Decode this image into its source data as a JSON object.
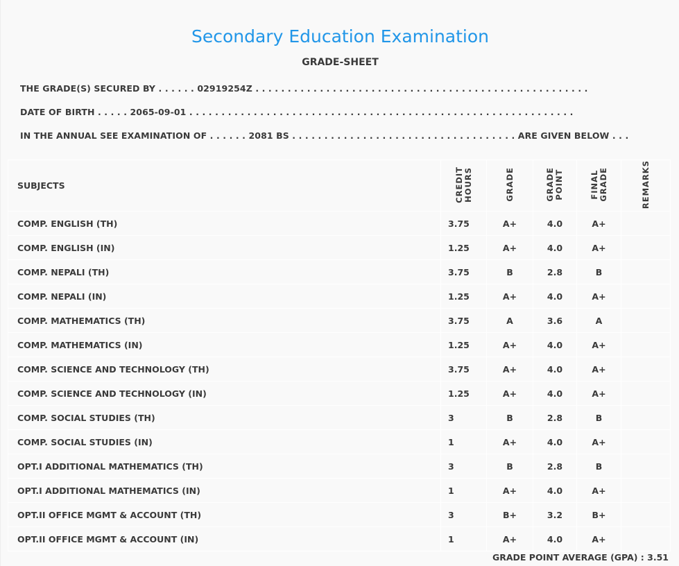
{
  "title": "Secondary Education Examination",
  "subtitle": "GRADE-SHEET",
  "info": {
    "line1": "THE GRADE(S) SECURED BY . . . . . . 02919254Z . . . . . . . . . . . . . . . . . . . . . . . . . . . . . . . . . . . . . . . . . . . . . . . . . . . .",
    "line2": "DATE OF BIRTH . . . . . 2065-09-01 . . . . . . . . . . . . . . . . . . . . . . . . . . . . . . . . . . . . . . . . . . . . . . . . . . . . . . . . . . . .",
    "line3": "IN THE ANNUAL SEE EXAMINATION OF . . . . . . 2081 BS . . . . . . . . . . . . . . . . . . . . . . . . . . . . . . . . . . . ARE GIVEN BELOW . . ."
  },
  "headers": {
    "subjects": "SUBJECTS",
    "credit1": "CREDIT",
    "credit2": "HOURS",
    "grade": "GRADE",
    "point1": "GRADE",
    "point2": "POINT",
    "final1": "FINAL",
    "final2": "GRADE",
    "remarks": "REMARKS"
  },
  "rows": [
    [
      "COMP. ENGLISH (TH)",
      "3.75",
      "A+",
      "4.0",
      "A+"
    ],
    [
      "COMP. ENGLISH (IN)",
      "1.25",
      "A+",
      "4.0",
      "A+"
    ],
    [
      "COMP. NEPALI (TH)",
      "3.75",
      "B",
      "2.8",
      "B"
    ],
    [
      "COMP. NEPALI (IN)",
      "1.25",
      "A+",
      "4.0",
      "A+"
    ],
    [
      "COMP. MATHEMATICS (TH)",
      "3.75",
      "A",
      "3.6",
      "A"
    ],
    [
      "COMP. MATHEMATICS (IN)",
      "1.25",
      "A+",
      "4.0",
      "A+"
    ],
    [
      "COMP. SCIENCE AND TECHNOLOGY (TH)",
      "3.75",
      "A+",
      "4.0",
      "A+"
    ],
    [
      "COMP. SCIENCE AND TECHNOLOGY (IN)",
      "1.25",
      "A+",
      "4.0",
      "A+"
    ],
    [
      "COMP. SOCIAL STUDIES (TH)",
      "3",
      "B",
      "2.8",
      "B"
    ],
    [
      "COMP. SOCIAL STUDIES (IN)",
      "1",
      "A+",
      "4.0",
      "A+"
    ],
    [
      "OPT.I ADDITIONAL MATHEMATICS (TH)",
      "3",
      "B",
      "2.8",
      "B"
    ],
    [
      "OPT.I ADDITIONAL MATHEMATICS (IN)",
      "1",
      "A+",
      "4.0",
      "A+"
    ],
    [
      "OPT.II OFFICE MGMT & ACCOUNT (TH)",
      "3",
      "B+",
      "3.2",
      "B+"
    ],
    [
      "OPT.II OFFICE MGMT & ACCOUNT (IN)",
      "1",
      "A+",
      "4.0",
      "A+"
    ]
  ],
  "gpa": "GRADE POINT AVERAGE (GPA) : 3.51"
}
